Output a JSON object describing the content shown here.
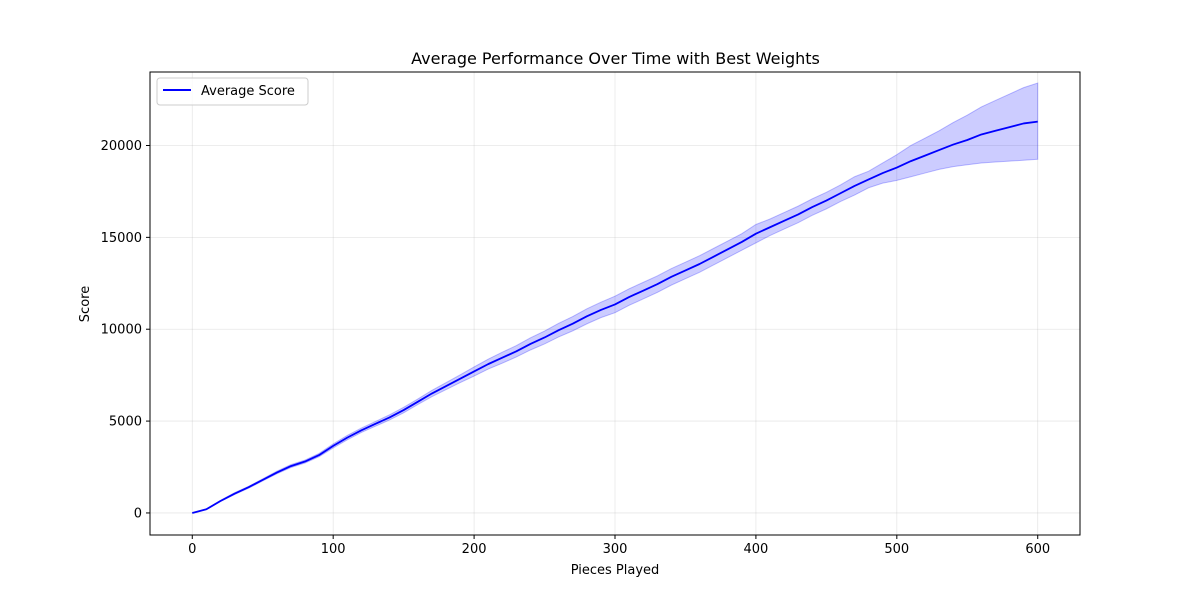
{
  "chart_data": {
    "type": "line",
    "title": "Average Performance Over Time with Best Weights",
    "xlabel": "Pieces Played",
    "ylabel": "Score",
    "xlim": [
      -30,
      630
    ],
    "ylim": [
      -1200,
      24000
    ],
    "xticks": [
      0,
      100,
      200,
      300,
      400,
      500,
      600
    ],
    "yticks": [
      0,
      5000,
      10000,
      15000,
      20000
    ],
    "grid": true,
    "legend_position": "top-left",
    "series": [
      {
        "name": "Average Score",
        "color": "#0000ff",
        "band_color": "#0000ff",
        "x": [
          0,
          10,
          20,
          30,
          40,
          50,
          60,
          70,
          80,
          90,
          100,
          110,
          120,
          130,
          140,
          150,
          160,
          170,
          180,
          190,
          200,
          210,
          220,
          230,
          240,
          250,
          260,
          270,
          280,
          290,
          300,
          310,
          320,
          330,
          340,
          350,
          360,
          370,
          380,
          390,
          400,
          410,
          420,
          430,
          440,
          450,
          460,
          470,
          480,
          490,
          500,
          510,
          520,
          530,
          540,
          550,
          560,
          570,
          580,
          590,
          600
        ],
        "mean": [
          0,
          200,
          650,
          1050,
          1400,
          1800,
          2200,
          2550,
          2800,
          3150,
          3650,
          4100,
          4500,
          4850,
          5200,
          5600,
          6050,
          6500,
          6900,
          7300,
          7700,
          8100,
          8450,
          8800,
          9200,
          9550,
          9950,
          10300,
          10700,
          11050,
          11350,
          11750,
          12100,
          12450,
          12850,
          13200,
          13550,
          13950,
          14350,
          14750,
          15200,
          15550,
          15900,
          16250,
          16650,
          17000,
          17400,
          17800,
          18150,
          18500,
          18800,
          19150,
          19450,
          19750,
          20050,
          20300,
          20600,
          20800,
          21000,
          21200,
          21300
        ],
        "lower": [
          0,
          190,
          620,
          1000,
          1350,
          1740,
          2130,
          2470,
          2720,
          3060,
          3540,
          3980,
          4380,
          4720,
          5060,
          5450,
          5900,
          6330,
          6710,
          7090,
          7450,
          7830,
          8150,
          8490,
          8870,
          9200,
          9580,
          9910,
          10290,
          10630,
          10900,
          11300,
          11650,
          12000,
          12400,
          12750,
          13100,
          13500,
          13900,
          14300,
          14700,
          15100,
          15450,
          15800,
          16200,
          16550,
          16950,
          17300,
          17700,
          17950,
          18100,
          18300,
          18500,
          18700,
          18850,
          18950,
          19050,
          19100,
          19150,
          19200,
          19250
        ],
        "upper": [
          0,
          210,
          680,
          1100,
          1450,
          1860,
          2270,
          2630,
          2880,
          3240,
          3760,
          4220,
          4620,
          4980,
          5340,
          5750,
          6200,
          6670,
          7090,
          7510,
          7950,
          8370,
          8750,
          9110,
          9530,
          9900,
          10320,
          10690,
          11110,
          11470,
          11800,
          12200,
          12550,
          12900,
          13300,
          13650,
          14000,
          14400,
          14800,
          15200,
          15700,
          16000,
          16350,
          16700,
          17100,
          17450,
          17850,
          18300,
          18600,
          19050,
          19500,
          20000,
          20400,
          20800,
          21250,
          21650,
          22100,
          22450,
          22800,
          23150,
          23400
        ]
      }
    ]
  }
}
